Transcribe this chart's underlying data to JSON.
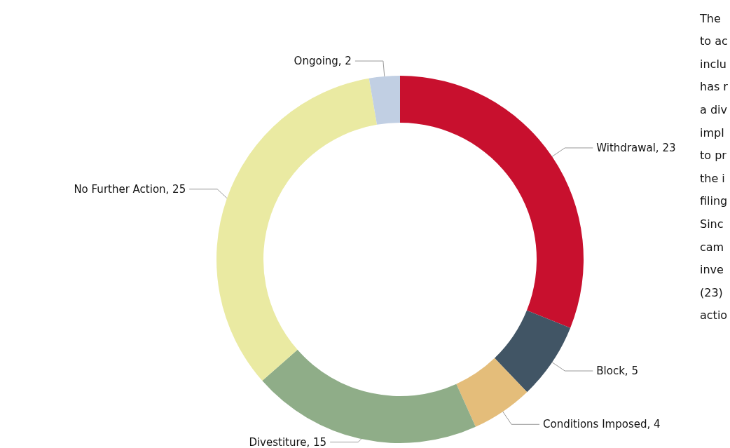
{
  "chart_data": {
    "type": "donut",
    "categories": [
      "Withdrawal",
      "Block",
      "Conditions Imposed",
      "Divestiture",
      "No Further Action",
      "Ongoing"
    ],
    "values": [
      23,
      5,
      4,
      15,
      25,
      2
    ],
    "colors": [
      "#c8102e",
      "#415565",
      "#e4bd7a",
      "#8fad88",
      "#eaeaa2",
      "#c1cfe3"
    ],
    "value_labels": [
      ", 23",
      ", 5",
      ", 4",
      ", 15",
      ", 25",
      ", 2"
    ],
    "legend": false,
    "annotations": [
      "The",
      "to ac",
      "inclu",
      "has r",
      "a div",
      "impl",
      "to pr",
      "the i",
      "filing",
      "Sinc",
      "cam",
      "inve",
      "(23)",
      "actio"
    ]
  }
}
